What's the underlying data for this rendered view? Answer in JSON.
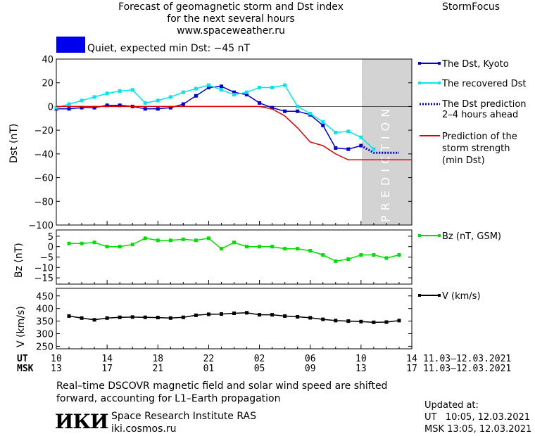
{
  "header": {
    "title_lines": [
      "Forecast of geomagnetic storm and Dst index",
      "for the next several hours",
      "www.spaceweather.ru"
    ],
    "brand": "StormFocus"
  },
  "status": {
    "text": "Quiet, expected min Dst: −45 nT",
    "color": "#0000ee"
  },
  "colors": {
    "dst_kyoto": "#0000cc",
    "recovered": "#00e5ee",
    "prediction": "#0000cc",
    "min_dst": "#dd0000",
    "bz": "#00dd00",
    "v": "#000000",
    "prediction_zone": "#d3d3d3"
  },
  "legend": {
    "dst_kyoto": "The Dst, Kyoto",
    "recovered": "The recovered Dst",
    "prediction_lines": [
      "The Dst prediction",
      "2–4 hours ahead"
    ],
    "min_dst_lines": [
      "Prediction of the",
      "storm strength",
      "(min Dst)"
    ],
    "bz": "Bz (nT, GSM)",
    "v": "V (km/s)"
  },
  "prediction_label": "PREDICTION",
  "time_axis": {
    "ut_label": "UT",
    "msk_label": "MSK",
    "ut_ticks": [
      "10",
      "14",
      "18",
      "22",
      "02",
      "06",
      "10",
      "14"
    ],
    "msk_ticks": [
      "13",
      "17",
      "21",
      "01",
      "05",
      "09",
      "13",
      "17"
    ],
    "date_range": "11.03–12.03.2021"
  },
  "note_lines": [
    "Real–time DSCOVR magnetic field and solar wind speed are shifted",
    "forward, accounting for L1–Earth propagation"
  ],
  "institute": {
    "logo": "ИКИ",
    "name": "Space Research Institute RAS",
    "site": "iki.cosmos.ru"
  },
  "updated": {
    "label": "Updated at:",
    "ut": "UT   10:05, 12.03.2021",
    "msk": "MSK 13:05, 12.03.2021"
  },
  "chart_data": [
    {
      "type": "line",
      "ylabel": "Dst (nT)",
      "ylim": [
        -100,
        40
      ],
      "yticks": [
        40,
        20,
        0,
        -20,
        -40,
        -60,
        -80,
        -100
      ],
      "xlim": [
        0,
        28
      ],
      "prediction_from": 24,
      "series": [
        {
          "name": "The Dst, Kyoto",
          "x": [
            0,
            1,
            2,
            3,
            4,
            5,
            6,
            7,
            8,
            9,
            10,
            11,
            12,
            13,
            14,
            15,
            16,
            17,
            18,
            19,
            20,
            21,
            22,
            23,
            24
          ],
          "values": [
            -2,
            -2,
            -1,
            -1,
            1,
            1,
            0,
            -2,
            -2,
            -1,
            2,
            9,
            16,
            17,
            12,
            10,
            3,
            -1,
            -4,
            -4,
            -7,
            -16,
            -35,
            -36,
            -33
          ]
        },
        {
          "name": "The recovered Dst",
          "x": [
            0,
            1,
            2,
            3,
            4,
            5,
            6,
            7,
            8,
            9,
            10,
            11,
            12,
            13,
            14,
            15,
            16,
            17,
            18,
            19,
            20,
            21,
            22,
            23,
            24,
            25
          ],
          "values": [
            -1,
            2,
            5,
            8,
            11,
            13,
            14,
            3,
            5,
            8,
            12,
            15,
            18,
            14,
            10,
            12,
            16,
            16,
            18,
            0,
            -6,
            -13,
            -22,
            -21,
            -26,
            -36
          ]
        },
        {
          "name": "The Dst prediction 2–4 hours ahead",
          "x": [
            24,
            25,
            26,
            27
          ],
          "values": [
            -33,
            -39,
            -39,
            -39
          ]
        },
        {
          "name": "Prediction of the storm strength (min Dst)",
          "x": [
            0,
            16,
            17,
            18,
            19,
            20,
            21,
            22,
            23,
            24,
            28
          ],
          "values": [
            0,
            0,
            -2,
            -8,
            -18,
            -30,
            -33,
            -40,
            -45,
            -45,
            -45
          ]
        }
      ]
    },
    {
      "type": "line",
      "ylabel": "Bz (nT)",
      "ylim": [
        -18,
        8
      ],
      "yticks": [
        5,
        0,
        -5,
        -10,
        -15
      ],
      "xlim": [
        0,
        28
      ],
      "series": [
        {
          "name": "Bz (nT, GSM)",
          "x": [
            1,
            2,
            3,
            4,
            5,
            6,
            7,
            8,
            9,
            10,
            11,
            12,
            13,
            14,
            15,
            16,
            17,
            18,
            19,
            20,
            21,
            22,
            23,
            24,
            25,
            26,
            27
          ],
          "values": [
            1.5,
            1.5,
            2,
            0,
            0,
            1,
            4,
            3,
            3,
            3.5,
            3,
            4,
            -1,
            2,
            0,
            0,
            0,
            -1,
            -1,
            -2,
            -4,
            -7,
            -6,
            -4,
            -4,
            -5.5,
            -4
          ]
        }
      ]
    },
    {
      "type": "line",
      "ylabel": "V (km/s)",
      "ylim": [
        240,
        480
      ],
      "yticks": [
        450,
        400,
        350,
        300,
        250
      ],
      "xlim": [
        0,
        28
      ],
      "series": [
        {
          "name": "V (km/s)",
          "x": [
            1,
            2,
            3,
            4,
            5,
            6,
            7,
            8,
            9,
            10,
            11,
            12,
            13,
            14,
            15,
            16,
            17,
            18,
            19,
            20,
            21,
            22,
            23,
            24,
            25,
            26,
            27
          ],
          "values": [
            370,
            362,
            355,
            362,
            365,
            366,
            365,
            364,
            362,
            365,
            373,
            377,
            378,
            381,
            383,
            375,
            375,
            370,
            367,
            363,
            357,
            352,
            350,
            348,
            345,
            346,
            352
          ]
        }
      ]
    }
  ]
}
